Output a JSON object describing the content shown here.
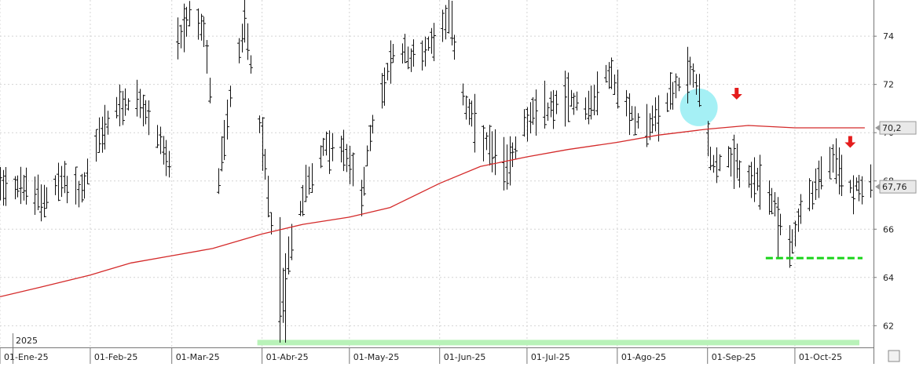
{
  "chart_data": {
    "type": "ohlc-bar",
    "year_label": "2025",
    "x_tick_labels": [
      "01-Ene-25",
      "01-Feb-25",
      "01-Mar-25",
      "01-Abr-25",
      "01-May-25",
      "01-Jun-25",
      "01-Jul-25",
      "01-Ago-25",
      "01-Sep-25",
      "01-Oct-25"
    ],
    "y_ticks": [
      62,
      64,
      66,
      68,
      70,
      72,
      74
    ],
    "ylim": [
      61.1,
      75.5
    ],
    "xlim": [
      "2025-01-01",
      "2025-10-28"
    ],
    "grid": true,
    "moving_average": {
      "color": "#d42a2a",
      "last_value_label": "70,2",
      "points": [
        [
          "2025-01-01",
          63.2
        ],
        [
          "2025-01-15",
          63.6
        ],
        [
          "2025-02-01",
          64.1
        ],
        [
          "2025-02-15",
          64.6
        ],
        [
          "2025-03-01",
          64.9
        ],
        [
          "2025-03-15",
          65.2
        ],
        [
          "2025-04-01",
          65.8
        ],
        [
          "2025-04-15",
          66.2
        ],
        [
          "2025-05-01",
          66.5
        ],
        [
          "2025-05-15",
          66.9
        ],
        [
          "2025-06-01",
          67.9
        ],
        [
          "2025-06-15",
          68.6
        ],
        [
          "2025-07-01",
          69.0
        ],
        [
          "2025-07-15",
          69.3
        ],
        [
          "2025-08-01",
          69.6
        ],
        [
          "2025-08-15",
          69.9
        ],
        [
          "2025-09-01",
          70.15
        ],
        [
          "2025-09-15",
          70.3
        ],
        [
          "2025-10-01",
          70.2
        ],
        [
          "2025-10-25",
          70.2
        ]
      ]
    },
    "last_price": {
      "value": 67.76,
      "label": "67,76"
    },
    "price_path": [
      [
        "2025-01-01",
        68.0
      ],
      [
        "2025-01-08",
        67.8
      ],
      [
        "2025-01-15",
        67.2
      ],
      [
        "2025-01-22",
        68.0
      ],
      [
        "2025-01-29",
        67.5
      ],
      [
        "2025-02-03",
        69.5
      ],
      [
        "2025-02-10",
        71.0
      ],
      [
        "2025-02-17",
        71.3
      ],
      [
        "2025-02-24",
        70.0
      ],
      [
        "2025-02-28",
        68.6
      ],
      [
        "2025-03-03",
        73.5
      ],
      [
        "2025-03-07",
        74.9
      ],
      [
        "2025-03-12",
        74.2
      ],
      [
        "2025-03-17",
        68.0
      ],
      [
        "2025-03-21",
        71.5
      ],
      [
        "2025-03-26",
        74.6
      ],
      [
        "2025-03-31",
        70.5
      ],
      [
        "2025-04-03",
        67.5
      ],
      [
        "2025-04-07",
        62.5
      ],
      [
        "2025-04-11",
        65.5
      ],
      [
        "2025-04-16",
        67.8
      ],
      [
        "2025-04-23",
        69.5
      ],
      [
        "2025-04-30",
        69.0
      ],
      [
        "2025-05-05",
        67.5
      ],
      [
        "2025-05-10",
        71.0
      ],
      [
        "2025-05-17",
        73.5
      ],
      [
        "2025-05-24",
        73.0
      ],
      [
        "2025-05-31",
        74.2
      ],
      [
        "2025-06-04",
        75.0
      ],
      [
        "2025-06-10",
        71.0
      ],
      [
        "2025-06-17",
        69.5
      ],
      [
        "2025-06-24",
        68.5
      ],
      [
        "2025-06-30",
        70.5
      ],
      [
        "2025-07-08",
        71.0
      ],
      [
        "2025-07-15",
        71.5
      ],
      [
        "2025-07-22",
        71.0
      ],
      [
        "2025-07-29",
        72.5
      ],
      [
        "2025-08-05",
        70.8
      ],
      [
        "2025-08-12",
        70.3
      ],
      [
        "2025-08-19",
        71.5
      ],
      [
        "2025-08-26",
        72.6
      ],
      [
        "2025-08-31",
        71.2
      ],
      [
        "2025-09-02",
        68.8
      ],
      [
        "2025-09-08",
        68.8
      ],
      [
        "2025-09-15",
        68.2
      ],
      [
        "2025-09-22",
        67.5
      ],
      [
        "2025-09-26",
        66.2
      ],
      [
        "2025-09-29",
        65.2
      ],
      [
        "2025-10-03",
        66.8
      ],
      [
        "2025-10-09",
        68.0
      ],
      [
        "2025-10-14",
        68.8
      ],
      [
        "2025-10-20",
        67.8
      ],
      [
        "2025-10-27",
        67.76
      ]
    ],
    "annotations": {
      "support_band_1": {
        "color": "#b8f2b8",
        "y": 61.3,
        "x_from": "2025-04-01",
        "x_to": "2025-10-28"
      },
      "support_line_2": {
        "color": "#19d419",
        "y": 64.8,
        "x_from": "2025-09-21",
        "x_to": "2025-10-28",
        "style": "dashed"
      },
      "highlight_circle": {
        "color": "#a5f0f5",
        "x": "2025-08-29",
        "y": 71.05
      },
      "down_arrows": [
        {
          "color": "#e41c1c",
          "x": "2025-09-11",
          "y": 71.6
        },
        {
          "color": "#e41c1c",
          "x": "2025-10-20",
          "y": 69.6
        }
      ]
    }
  }
}
